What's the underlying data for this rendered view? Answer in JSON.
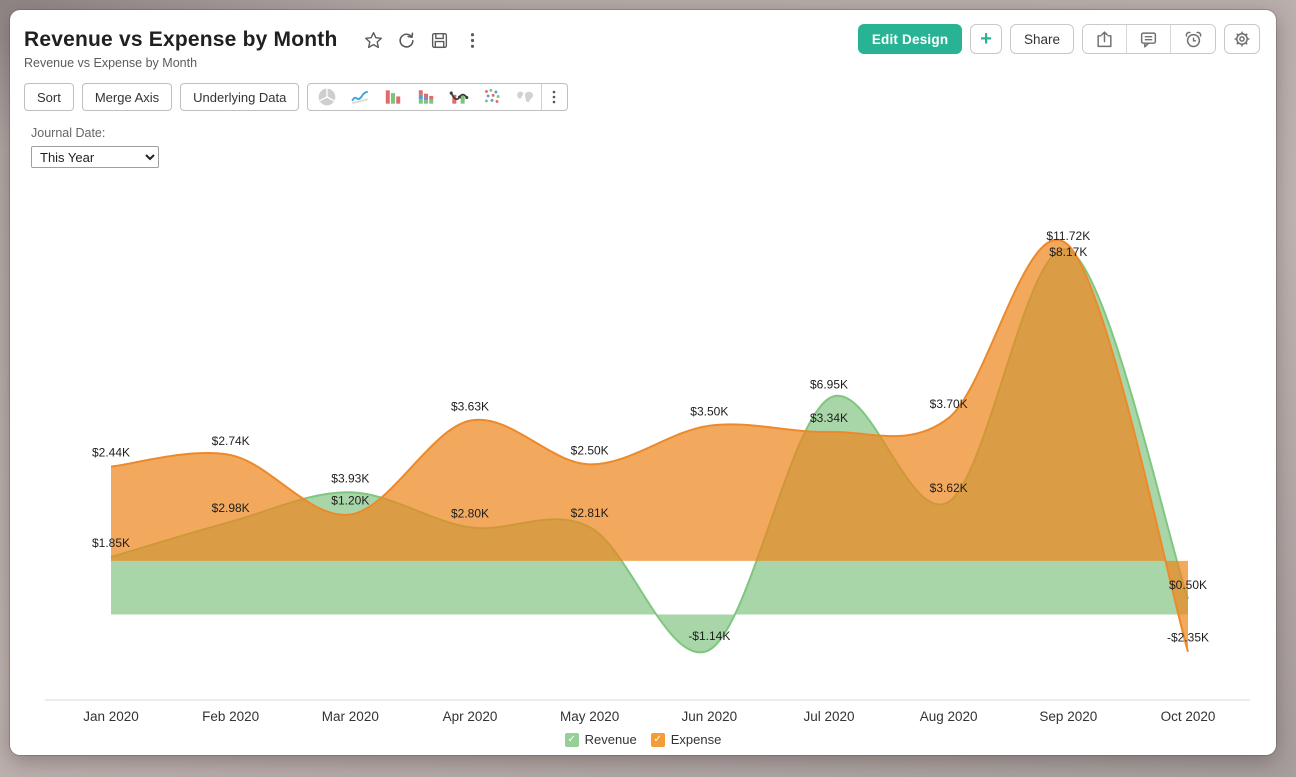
{
  "header": {
    "title": "Revenue vs Expense by Month",
    "subtitle": "Revenue vs Expense by Month",
    "title_icons": [
      "favorite",
      "refresh",
      "save",
      "more"
    ],
    "edit_design_label": "Edit Design",
    "add_label": "+",
    "share_label": "Share",
    "action_icons": [
      "export",
      "comment",
      "reminder",
      "settings"
    ],
    "accent_color": "#28B494"
  },
  "toolbar": {
    "sort_label": "Sort",
    "merge_axis_label": "Merge Axis",
    "underlying_data_label": "Underlying Data",
    "chart_type_icons": [
      "pie-chart",
      "line-chart",
      "bar-chart",
      "stacked-bar-chart",
      "combination-chart",
      "scatter-plot",
      "world-map"
    ],
    "disabled_chart_types": [
      "pie-chart",
      "world-map"
    ]
  },
  "filter": {
    "label": "Journal Date:",
    "value": "This Year",
    "options": [
      "This Year"
    ]
  },
  "chart_data": {
    "type": "area",
    "title": "Revenue vs Expense by Month",
    "smooth": true,
    "grid": false,
    "y_axis_visible": false,
    "legend_position": "bottom",
    "categories": [
      "Jan 2020",
      "Feb 2020",
      "Mar 2020",
      "Apr 2020",
      "May 2020",
      "Jun 2020",
      "Jul 2020",
      "Aug 2020",
      "Sep 2020",
      "Oct 2020"
    ],
    "series": [
      {
        "name": "Revenue",
        "values": [
          1.85,
          2.98,
          3.93,
          2.8,
          2.81,
          -1.14,
          6.95,
          3.62,
          11.72,
          0.5
        ],
        "labels": [
          "$1.85K",
          "$2.98K",
          "$3.93K",
          "$2.80K",
          "$2.81K",
          "-$1.14K",
          "$6.95K",
          "$3.62K",
          "$11.72K",
          "$0.50K"
        ],
        "area_color": "#A9D6A9",
        "line_color": "#7FC77F",
        "swatch_color": "#98CE98",
        "fill_opacity": 1,
        "axis": {
          "min": -2.75,
          "max": 13.65
        }
      },
      {
        "name": "Expense",
        "values": [
          2.44,
          2.74,
          1.2,
          3.63,
          2.5,
          3.5,
          3.34,
          3.7,
          8.17,
          -2.35
        ],
        "labels": [
          "$2.44K",
          "$2.74K",
          "$1.20K",
          "$3.63K",
          "$2.50K",
          "$3.50K",
          "$3.34K",
          "$3.70K",
          "$8.17K",
          "-$2.35K"
        ],
        "area_color": "#ED861F",
        "line_color": "#EC8A2B",
        "swatch_color": "#F49C38",
        "fill_opacity": 0.72,
        "axis": {
          "min": -3.6,
          "max": 9.6
        }
      }
    ]
  }
}
